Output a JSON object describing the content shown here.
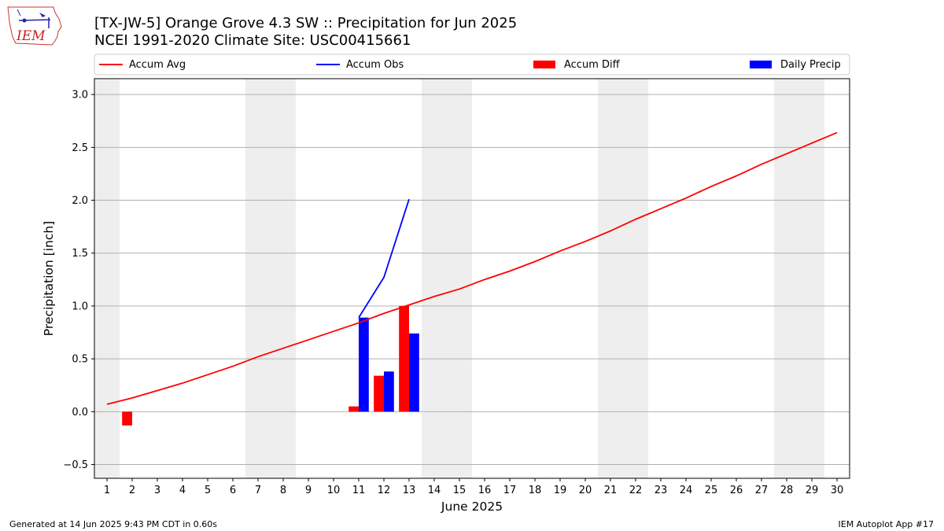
{
  "header": {
    "title_line1": "[TX-JW-5] Orange Grove 4.3 SW :: Precipitation for Jun 2025",
    "title_line2": "NCEI 1991-2020 Climate Site: USC00415661",
    "logo_text": "IEM"
  },
  "footer": {
    "left": "Generated at 14 Jun 2025 9:43 PM CDT in 0.60s",
    "right": "IEM Autoplot App #17"
  },
  "colors": {
    "avg": "#ff0000",
    "obs": "#0000ff",
    "diff": "#ff0000",
    "daily": "#0000ff",
    "weekend_band": "#eeeeee",
    "grid": "#b0b0b0"
  },
  "chart_data": {
    "type": "bar",
    "xlabel": "June 2025",
    "ylabel": "Precipitation [inch]",
    "xlim": [
      0.5,
      30.5
    ],
    "ylim": [
      -0.63,
      3.15
    ],
    "yticks": [
      -0.5,
      0.0,
      0.5,
      1.0,
      1.5,
      2.0,
      2.5,
      3.0
    ],
    "ytick_labels": [
      "−0.5",
      "0.0",
      "0.5",
      "1.0",
      "1.5",
      "2.0",
      "2.5",
      "3.0"
    ],
    "x": [
      1,
      2,
      3,
      4,
      5,
      6,
      7,
      8,
      9,
      10,
      11,
      12,
      13,
      14,
      15,
      16,
      17,
      18,
      19,
      20,
      21,
      22,
      23,
      24,
      25,
      26,
      27,
      28,
      29,
      30
    ],
    "weekend_days": [
      1,
      7,
      8,
      14,
      15,
      21,
      22,
      28,
      29
    ],
    "grid": "horizontal",
    "legend_position": "top",
    "legend": [
      "Accum Avg",
      "Accum Obs",
      "Accum Diff",
      "Daily Precip"
    ],
    "series": [
      {
        "name": "Accum Avg",
        "kind": "line",
        "color": "#ff0000",
        "x": [
          1,
          2,
          3,
          4,
          5,
          6,
          7,
          8,
          9,
          10,
          11,
          12,
          13,
          14,
          15,
          16,
          17,
          18,
          19,
          20,
          21,
          22,
          23,
          24,
          25,
          26,
          27,
          28,
          29,
          30
        ],
        "values": [
          0.07,
          0.13,
          0.2,
          0.27,
          0.35,
          0.43,
          0.52,
          0.6,
          0.68,
          0.76,
          0.84,
          0.93,
          1.01,
          1.09,
          1.16,
          1.25,
          1.33,
          1.42,
          1.52,
          1.61,
          1.71,
          1.82,
          1.92,
          2.02,
          2.13,
          2.23,
          2.34,
          2.44,
          2.54,
          2.64
        ]
      },
      {
        "name": "Accum Obs",
        "kind": "line",
        "color": "#0000ff",
        "x": [
          11,
          12,
          13
        ],
        "values": [
          0.89,
          1.27,
          2.01
        ]
      },
      {
        "name": "Accum Diff",
        "kind": "bar",
        "color": "#ff0000",
        "x": [
          2,
          11,
          12,
          13
        ],
        "values": [
          -0.13,
          0.05,
          0.34,
          1.0
        ]
      },
      {
        "name": "Daily Precip",
        "kind": "bar",
        "color": "#0000ff",
        "x": [
          11,
          12,
          13
        ],
        "values": [
          0.89,
          0.38,
          0.74
        ]
      }
    ]
  }
}
